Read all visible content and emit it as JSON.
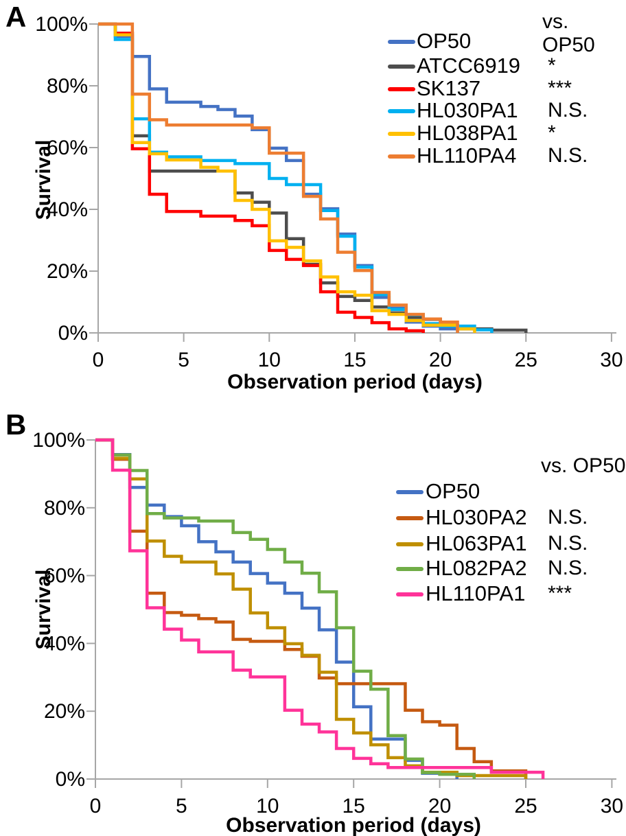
{
  "panels": [
    {
      "panel_label": "A",
      "comparison_header": "vs. OP50",
      "x_axis_label": "Observation period (days)",
      "y_axis_label": "Survival"
    },
    {
      "panel_label": "B",
      "comparison_header": "vs. OP50",
      "x_axis_label": "Observation period (days)",
      "y_axis_label": "Survival"
    }
  ],
  "chart_data": [
    {
      "type": "line",
      "subtype": "kaplan-meier-survival-steps",
      "panel": "A",
      "xlabel": "Observation period (days)",
      "ylabel": "Survival",
      "xlim": [
        0,
        30
      ],
      "ylim_percent": [
        0,
        100
      ],
      "x_tick_values": [
        0,
        5,
        10,
        15,
        20,
        25,
        30
      ],
      "y_tick_labels": [
        "0%",
        "20%",
        "40%",
        "60%",
        "80%",
        "100%"
      ],
      "y_tick_percents": [
        0,
        20,
        40,
        60,
        80,
        100
      ],
      "grid": false,
      "legend_position": "top-right-inside",
      "legend_header": "vs. OP50",
      "series": [
        {
          "name": "OP50",
          "color": "#4472C4",
          "significance_vs_op50": "",
          "steps_day_percent": [
            [
              0,
              100
            ],
            [
              1,
              96
            ],
            [
              2,
              89.5
            ],
            [
              3,
              79
            ],
            [
              4,
              74.7
            ],
            [
              6,
              73.3
            ],
            [
              7,
              72.3
            ],
            [
              8,
              70.2
            ],
            [
              9,
              65.8
            ],
            [
              10,
              59.8
            ],
            [
              11,
              55.8
            ],
            [
              12,
              44.9
            ],
            [
              13,
              40.2
            ],
            [
              14,
              32
            ],
            [
              15,
              21.8
            ],
            [
              16,
              11.5
            ],
            [
              17,
              8
            ],
            [
              18,
              3.5
            ],
            [
              19,
              2.2
            ],
            [
              20,
              1.3
            ],
            [
              21,
              0
            ]
          ]
        },
        {
          "name": "ATCC6919",
          "color": "#4D4D4D",
          "significance_vs_op50": "*",
          "steps_day_percent": [
            [
              0,
              100
            ],
            [
              1,
              97
            ],
            [
              2,
              63.8
            ],
            [
              3,
              52.4
            ],
            [
              8,
              45.3
            ],
            [
              9,
              42.3
            ],
            [
              10,
              38.8
            ],
            [
              11,
              30.5
            ],
            [
              12,
              22.2
            ],
            [
              13,
              16.2
            ],
            [
              14,
              11.8
            ],
            [
              15,
              10.5
            ],
            [
              16,
              8.4
            ],
            [
              17,
              6.5
            ],
            [
              18,
              5
            ],
            [
              19,
              4.4
            ],
            [
              20,
              2.5
            ],
            [
              21,
              1.3
            ],
            [
              23,
              0.9
            ],
            [
              25,
              0
            ]
          ]
        },
        {
          "name": "SK137",
          "color": "#FF0000",
          "significance_vs_op50": "***",
          "steps_day_percent": [
            [
              0,
              100
            ],
            [
              1,
              97
            ],
            [
              2,
              59.6
            ],
            [
              3,
              44.9
            ],
            [
              4,
              39.3
            ],
            [
              6,
              37.8
            ],
            [
              8,
              36.4
            ],
            [
              9,
              34.7
            ],
            [
              10,
              26.7
            ],
            [
              11,
              23.8
            ],
            [
              12,
              21.8
            ],
            [
              13,
              13.3
            ],
            [
              14,
              6.7
            ],
            [
              15,
              5
            ],
            [
              16,
              3.3
            ],
            [
              17,
              1.3
            ],
            [
              18,
              0.7
            ],
            [
              19,
              0
            ]
          ]
        },
        {
          "name": "HL030PA1",
          "color": "#00B0F0",
          "significance_vs_op50": "N.S.",
          "steps_day_percent": [
            [
              0,
              100
            ],
            [
              1,
              95
            ],
            [
              2,
              69.3
            ],
            [
              3,
              58.5
            ],
            [
              4,
              57
            ],
            [
              6,
              55.8
            ],
            [
              8,
              54.8
            ],
            [
              10,
              50
            ],
            [
              11,
              48
            ],
            [
              13,
              39.6
            ],
            [
              14,
              31.3
            ],
            [
              15,
              21.3
            ],
            [
              16,
              12.4
            ],
            [
              17,
              7.6
            ],
            [
              18,
              5.9
            ],
            [
              19,
              3
            ],
            [
              20,
              2.2
            ],
            [
              22,
              1
            ],
            [
              23,
              0
            ]
          ]
        },
        {
          "name": "HL038PA1",
          "color": "#FFC000",
          "significance_vs_op50": "*",
          "steps_day_percent": [
            [
              0,
              100
            ],
            [
              1,
              96.5
            ],
            [
              2,
              61.6
            ],
            [
              3,
              58
            ],
            [
              4,
              56
            ],
            [
              6,
              53.6
            ],
            [
              7,
              52.4
            ],
            [
              8,
              42.9
            ],
            [
              9,
              40
            ],
            [
              10,
              29.8
            ],
            [
              11,
              27.7
            ],
            [
              12,
              23.3
            ],
            [
              13,
              18.1
            ],
            [
              14,
              13.3
            ],
            [
              15,
              12.2
            ],
            [
              16,
              7.2
            ],
            [
              17,
              6
            ],
            [
              18,
              4
            ],
            [
              19,
              2.5
            ],
            [
              21,
              1.3
            ],
            [
              22,
              0
            ]
          ]
        },
        {
          "name": "HL110PA4",
          "color": "#ED7D31",
          "significance_vs_op50": "N.S.",
          "steps_day_percent": [
            [
              0,
              100
            ],
            [
              2,
              77.3
            ],
            [
              3,
              69
            ],
            [
              4,
              67.3
            ],
            [
              9,
              66.4
            ],
            [
              10,
              58.2
            ],
            [
              12,
              44.2
            ],
            [
              13,
              36.9
            ],
            [
              14,
              26.1
            ],
            [
              15,
              20.2
            ],
            [
              16,
              13.1
            ],
            [
              17,
              9
            ],
            [
              18,
              6
            ],
            [
              19,
              4.5
            ],
            [
              20,
              3.5
            ],
            [
              21,
              0
            ]
          ]
        }
      ]
    },
    {
      "type": "line",
      "subtype": "kaplan-meier-survival-steps",
      "panel": "B",
      "xlabel": "Observation period (days)",
      "ylabel": "Survival",
      "xlim": [
        0,
        30
      ],
      "ylim_percent": [
        0,
        100
      ],
      "x_tick_values": [
        0,
        5,
        10,
        15,
        20,
        25,
        30
      ],
      "y_tick_labels": [
        "0%",
        "20%",
        "40%",
        "60%",
        "80%",
        "100%"
      ],
      "y_tick_percents": [
        0,
        20,
        40,
        60,
        80,
        100
      ],
      "grid": false,
      "legend_position": "top-right-inside",
      "legend_header": "vs. OP50",
      "series": [
        {
          "name": "OP50",
          "color": "#4472C4",
          "significance_vs_op50": "",
          "steps_day_percent": [
            [
              0,
              100
            ],
            [
              1,
              95.7
            ],
            [
              2,
              86
            ],
            [
              3,
              80.8
            ],
            [
              4,
              77.4
            ],
            [
              5,
              74.7
            ],
            [
              6,
              70
            ],
            [
              7,
              67
            ],
            [
              8,
              64
            ],
            [
              9,
              60.6
            ],
            [
              10,
              57.8
            ],
            [
              11,
              54.8
            ],
            [
              12,
              50.4
            ],
            [
              13,
              44
            ],
            [
              14,
              34.5
            ],
            [
              15,
              21.3
            ],
            [
              16,
              11.8
            ],
            [
              18,
              5.5
            ],
            [
              19,
              1.7
            ],
            [
              21,
              0
            ]
          ]
        },
        {
          "name": "HL030PA2",
          "color": "#C55A11",
          "significance_vs_op50": "N.S.",
          "steps_day_percent": [
            [
              0,
              100
            ],
            [
              1,
              94.3
            ],
            [
              2,
              73.1
            ],
            [
              3,
              54.8
            ],
            [
              4,
              49.1
            ],
            [
              5,
              48.3
            ],
            [
              6,
              47.3
            ],
            [
              7,
              46.3
            ],
            [
              8,
              41.2
            ],
            [
              9,
              40.6
            ],
            [
              11,
              38.2
            ],
            [
              12,
              36.2
            ],
            [
              13,
              29.8
            ],
            [
              14,
              28.1
            ],
            [
              18,
              20.3
            ],
            [
              19,
              16.9
            ],
            [
              20,
              15.9
            ],
            [
              21,
              9
            ],
            [
              22,
              5.1
            ],
            [
              23,
              2.4
            ],
            [
              25,
              0
            ]
          ]
        },
        {
          "name": "HL063PA1",
          "color": "#BF8F00",
          "significance_vs_op50": "N.S.",
          "steps_day_percent": [
            [
              0,
              100
            ],
            [
              1,
              94.6
            ],
            [
              2,
              88.5
            ],
            [
              3,
              70.2
            ],
            [
              4,
              65.7
            ],
            [
              5,
              64
            ],
            [
              7,
              60.5
            ],
            [
              8,
              56
            ],
            [
              9,
              49
            ],
            [
              10,
              44.6
            ],
            [
              11,
              39.9
            ],
            [
              12,
              36.5
            ],
            [
              13,
              31.5
            ],
            [
              14,
              17.6
            ],
            [
              15,
              13.6
            ],
            [
              16,
              10.1
            ],
            [
              17,
              6.3
            ],
            [
              18,
              3.9
            ],
            [
              19,
              2
            ],
            [
              21,
              1
            ],
            [
              25,
              0
            ]
          ]
        },
        {
          "name": "HL082PA2",
          "color": "#70AD47",
          "significance_vs_op50": "N.S.",
          "steps_day_percent": [
            [
              0,
              100
            ],
            [
              1,
              95.6
            ],
            [
              2,
              91
            ],
            [
              3,
              78.3
            ],
            [
              4,
              77
            ],
            [
              6,
              76.1
            ],
            [
              8,
              72.7
            ],
            [
              9,
              70.7
            ],
            [
              10,
              67.7
            ],
            [
              11,
              64
            ],
            [
              12,
              60.7
            ],
            [
              13,
              55.2
            ],
            [
              14,
              44.6
            ],
            [
              15,
              31.8
            ],
            [
              16,
              26.5
            ],
            [
              17,
              12.8
            ],
            [
              18,
              5.9
            ],
            [
              19,
              1.9
            ],
            [
              20,
              1.4
            ],
            [
              22,
              0
            ]
          ]
        },
        {
          "name": "HL110PA1",
          "color": "#FF3399",
          "significance_vs_op50": "***",
          "steps_day_percent": [
            [
              0,
              100
            ],
            [
              1,
              91.1
            ],
            [
              2,
              67.3
            ],
            [
              3,
              50.5
            ],
            [
              4,
              44.2
            ],
            [
              5,
              41
            ],
            [
              6,
              37.5
            ],
            [
              8,
              32.1
            ],
            [
              9,
              30.1
            ],
            [
              11,
              20.3
            ],
            [
              12,
              16.2
            ],
            [
              13,
              13.9
            ],
            [
              14,
              9
            ],
            [
              15,
              6.1
            ],
            [
              16,
              4.5
            ],
            [
              17,
              3.4
            ],
            [
              23,
              2
            ],
            [
              26,
              0
            ]
          ]
        }
      ]
    }
  ],
  "colors": {
    "axis": "#A6A6A6",
    "text": "#000000",
    "background": "#FFFFFF"
  }
}
